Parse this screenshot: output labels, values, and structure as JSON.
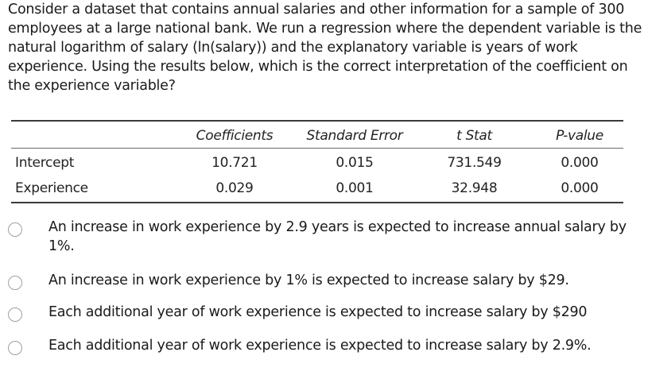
{
  "question": {
    "text": "Consider a dataset that contains annual salaries and other information for a sample of 300 employees at a large national bank. We run a regression where the dependent variable is the natural logarithm of salary (ln(salary)) and the explanatory variable is years of work experience. Using the results below, which is the correct interpretation of the coefficient on the experience variable?"
  },
  "regression_table": {
    "headers": [
      "Coefficients",
      "Standard Error",
      "t Stat",
      "P-value"
    ],
    "rows": [
      {
        "label": "Intercept",
        "coefficient": "10.721",
        "std_error": "0.015",
        "t_stat": "731.549",
        "p_value": "0.000"
      },
      {
        "label": "Experience",
        "coefficient": "0.029",
        "std_error": "0.001",
        "t_stat": "32.948",
        "p_value": "0.000"
      }
    ]
  },
  "options": [
    {
      "text": "An increase in work experience by 2.9 years is expected to increase annual salary by 1%.",
      "selected": false
    },
    {
      "text": "An increase in work experience by 1% is expected to increase salary by $29.",
      "selected": false
    },
    {
      "text": "Each additional year of work experience is expected to increase salary by $290",
      "selected": false
    },
    {
      "text": "Each additional year of work experience is expected to increase salary by 2.9%.",
      "selected": false
    }
  ]
}
